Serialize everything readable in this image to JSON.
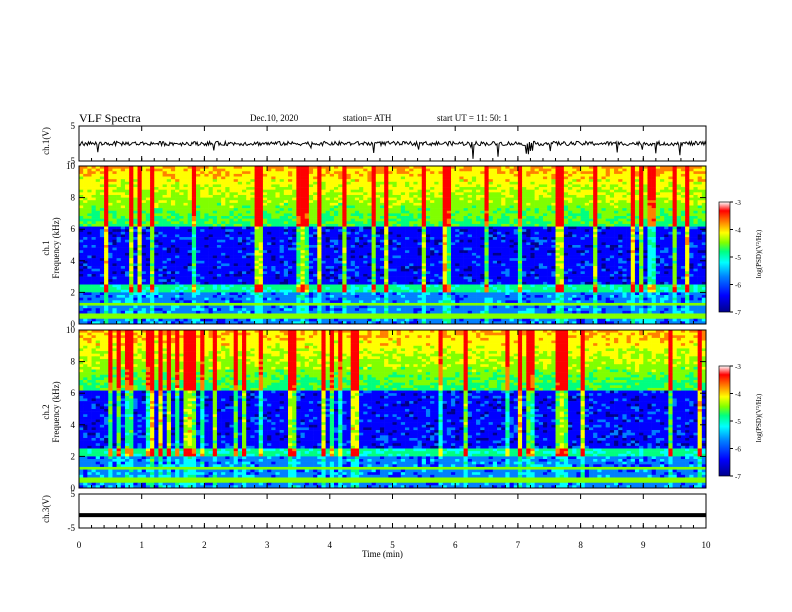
{
  "header": {
    "title": "VLF Spectra",
    "date": "Dec.10, 2020",
    "station": "station= ATH",
    "start": "start  UT =   11: 50: 1"
  },
  "chart_data": [
    {
      "type": "line",
      "ylabel": "ch.1(V)",
      "ylim": [
        -5,
        5
      ],
      "yticks": [
        "5",
        "-5"
      ],
      "baseline": 0.0,
      "noise": 1.2
    },
    {
      "type": "heatmap",
      "ylabel": "ch.1\nFrequency (kHz)",
      "ylabel_line1": "ch.1",
      "ylabel_line2": "Frequency (kHz)",
      "ylim": [
        0,
        10
      ],
      "yticks": [
        "0",
        "2",
        "4",
        "6",
        "8",
        "10"
      ],
      "colorbar": {
        "label": "log(PSD)(V²/Hz)",
        "range": [
          -7,
          -3
        ],
        "ticks": [
          "-3",
          "-4",
          "-5",
          "-6",
          "-7"
        ]
      }
    },
    {
      "type": "heatmap",
      "ylabel": "ch.2\nFrequency (kHz)",
      "ylabel_line1": "ch.2",
      "ylabel_line2": "Frequency (kHz)",
      "ylim": [
        0,
        10
      ],
      "yticks": [
        "0",
        "2",
        "4",
        "6",
        "8",
        "10"
      ],
      "colorbar": {
        "label": "log(PSD)(V²/Hz)",
        "range": [
          -7,
          -3
        ],
        "ticks": [
          "-3",
          "-4",
          "-5",
          "-6",
          "-7"
        ]
      }
    },
    {
      "type": "line",
      "ylabel": "ch.3(V)",
      "ylim": [
        -5,
        5
      ],
      "yticks": [
        "5",
        "-5"
      ],
      "baseline": -1.2,
      "noise": 0.0
    }
  ],
  "xaxis": {
    "label": "Time  (min)",
    "range": [
      0,
      10
    ],
    "ticks": [
      "0",
      "1",
      "2",
      "3",
      "4",
      "5",
      "6",
      "7",
      "8",
      "9",
      "10"
    ]
  },
  "colors": {
    "colormap": [
      "#00008b",
      "#0000ff",
      "#0080ff",
      "#00ffff",
      "#00ff80",
      "#80ff00",
      "#ffff00",
      "#ff8000",
      "#ff0000",
      "#ffffff"
    ]
  }
}
